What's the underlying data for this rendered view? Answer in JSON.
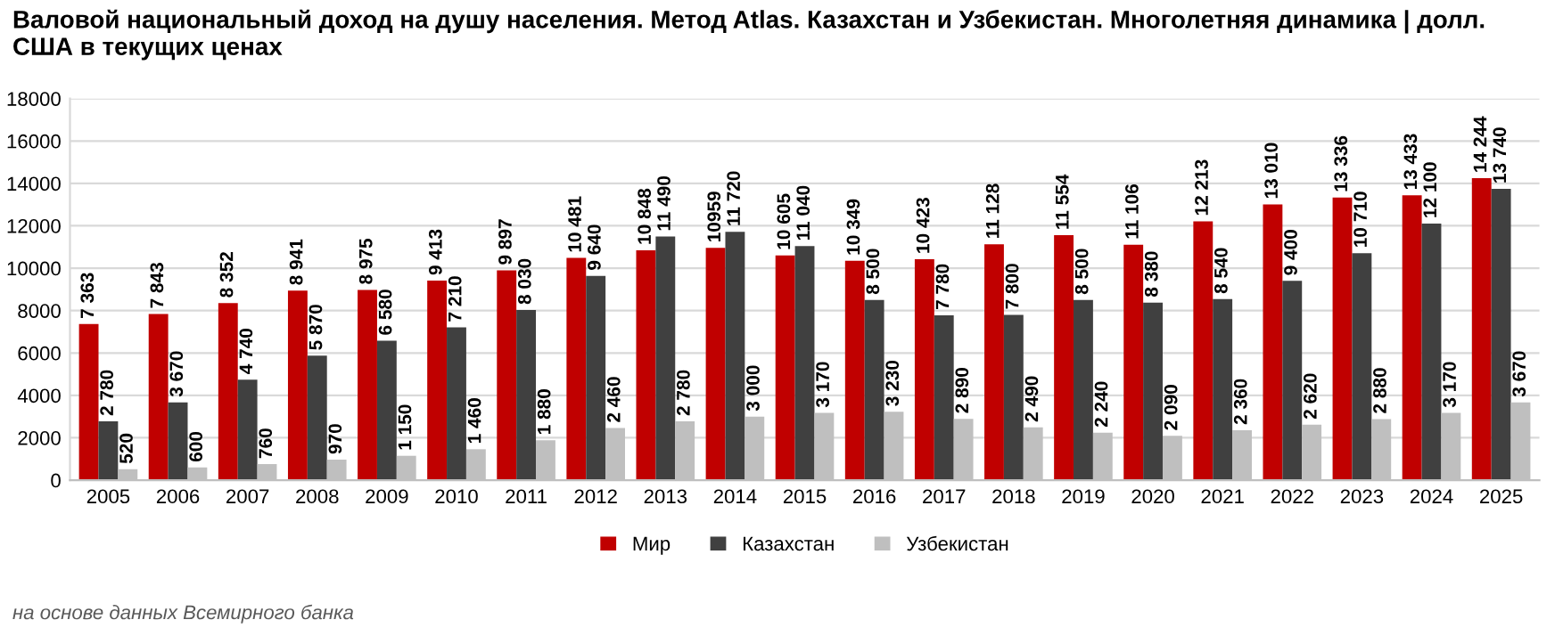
{
  "chart_data": {
    "type": "bar",
    "title": "Валовой национальный доход на душу населения. Метод Atlas. Казахстан и Узбекистан. Многолетняя динамика | долл. США в текущих ценах",
    "categories": [
      "2005",
      "2006",
      "2007",
      "2008",
      "2009",
      "2010",
      "2011",
      "2012",
      "2013",
      "2014",
      "2015",
      "2016",
      "2017",
      "2018",
      "2019",
      "2020",
      "2021",
      "2022",
      "2023",
      "2024",
      "2025"
    ],
    "series": [
      {
        "name": "Мир",
        "color": "#c00000",
        "values": [
          7363,
          7843,
          8352,
          8941,
          8975,
          9413,
          9897,
          10481,
          10848,
          10959,
          10605,
          10349,
          10423,
          11128,
          11554,
          11106,
          12213,
          13010,
          13336,
          13433,
          14244
        ],
        "value_labels": [
          "7 363",
          "7 843",
          "8 352",
          "8 941",
          "8 975",
          "9 413",
          "9 897",
          "10 481",
          "10 848",
          "10959",
          "10 605",
          "10 349",
          "10 423",
          "11 128",
          "11 554",
          "11 106",
          "12 213",
          "13 010",
          "13 336",
          "13 433",
          "14 244"
        ]
      },
      {
        "name": "Казахстан",
        "color": "#404040",
        "values": [
          2780,
          3670,
          4740,
          5870,
          6580,
          7210,
          8030,
          9640,
          11490,
          11720,
          11040,
          8500,
          7780,
          7800,
          8500,
          8380,
          8540,
          9400,
          10710,
          12100,
          13740
        ],
        "value_labels": [
          "2 780",
          "3 670",
          "4 740",
          "5 870",
          "6 580",
          "7 210",
          "8 030",
          "9 640",
          "11 490",
          "11 720",
          "11 040",
          "8 500",
          "7 780",
          "7 800",
          "8 500",
          "8 380",
          "8 540",
          "9 400",
          "10 710",
          "12 100",
          "13 740"
        ]
      },
      {
        "name": "Узбекистан",
        "color": "#bfbfbf",
        "values": [
          520,
          600,
          760,
          970,
          1150,
          1460,
          1880,
          2460,
          2780,
          3000,
          3170,
          3230,
          2890,
          2490,
          2240,
          2090,
          2360,
          2620,
          2880,
          3170,
          3670
        ],
        "value_labels": [
          "520",
          "600",
          "760",
          "970",
          "1 150",
          "1 460",
          "1 880",
          "2 460",
          "2 780",
          "3 000",
          "3 170",
          "3 230",
          "2 890",
          "2 490",
          "2 240",
          "2 090",
          "2 360",
          "2 620",
          "2 880",
          "3 170",
          "3 670"
        ]
      }
    ],
    "ylim": [
      0,
      18000
    ],
    "yticks": [
      0,
      2000,
      4000,
      6000,
      8000,
      10000,
      12000,
      14000,
      16000,
      18000
    ],
    "grid": "y",
    "legend": "bottom",
    "annotations": [
      "на основе данных Всемирного банка"
    ]
  }
}
